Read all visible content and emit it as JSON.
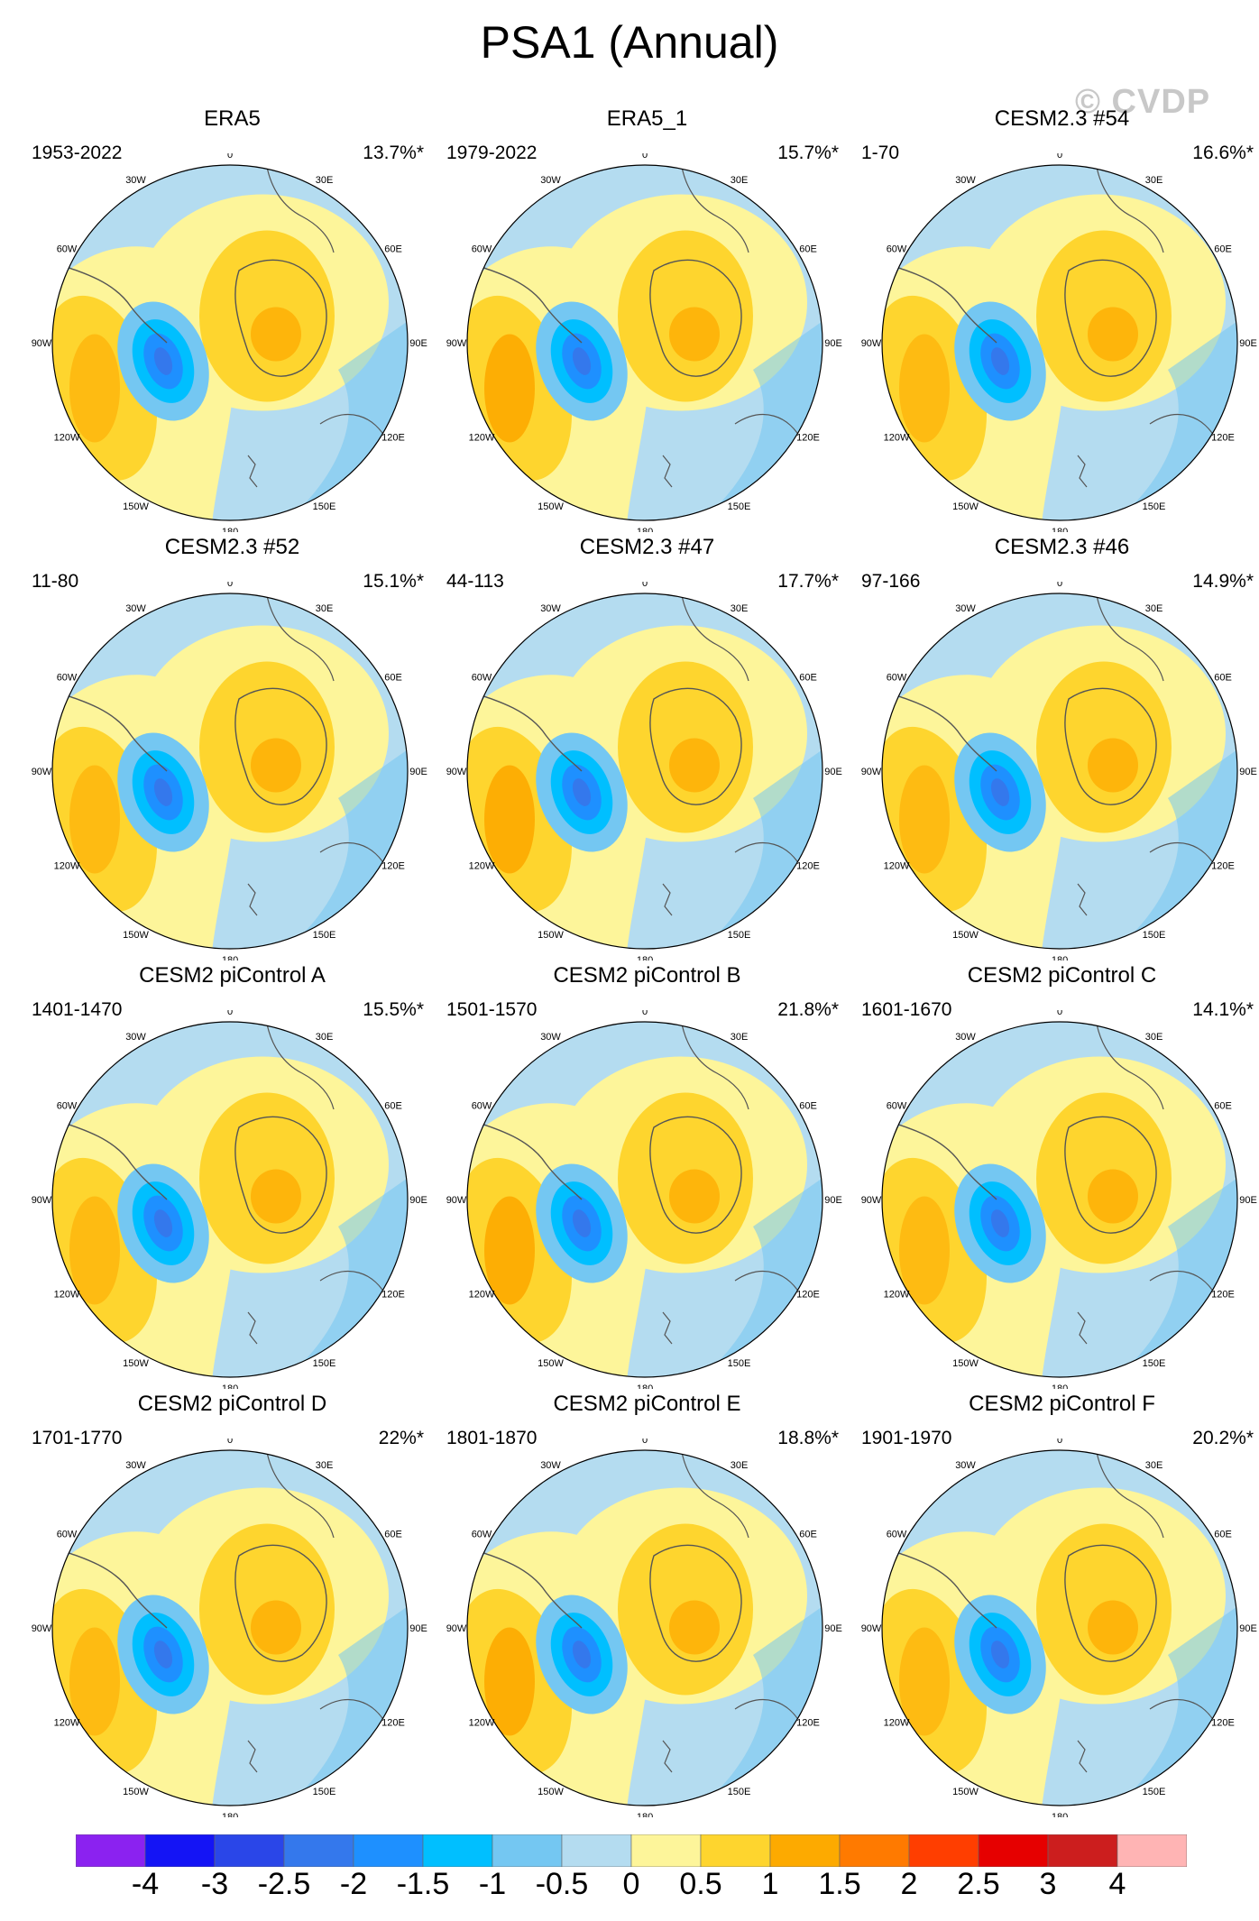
{
  "title": "PSA1 (Annual)",
  "watermark": "© CVDP",
  "panels": [
    {
      "name": "ERA5",
      "years": "1953-2022",
      "pct": "13.7%*"
    },
    {
      "name": "ERA5_1",
      "years": "1979-2022",
      "pct": "15.7%*"
    },
    {
      "name": "CESM2.3 #54",
      "years": "1-70",
      "pct": "16.6%*"
    },
    {
      "name": "CESM2.3 #52",
      "years": "11-80",
      "pct": "15.1%*"
    },
    {
      "name": "CESM2.3 #47",
      "years": "44-113",
      "pct": "17.7%*"
    },
    {
      "name": "CESM2.3 #46",
      "years": "97-166",
      "pct": "14.9%*"
    },
    {
      "name": "CESM2 piControl A",
      "years": "1401-1470",
      "pct": "15.5%*"
    },
    {
      "name": "CESM2 piControl B",
      "years": "1501-1570",
      "pct": "21.8%*"
    },
    {
      "name": "CESM2 piControl C",
      "years": "1601-1670",
      "pct": "14.1%*"
    },
    {
      "name": "CESM2 piControl D",
      "years": "1701-1770",
      "pct": "22%*"
    },
    {
      "name": "CESM2 piControl E",
      "years": "1801-1870",
      "pct": "18.8%*"
    },
    {
      "name": "CESM2 piControl F",
      "years": "1901-1970",
      "pct": "20.2%*"
    }
  ],
  "lon_labels": [
    "0",
    "30E",
    "60E",
    "90E",
    "120E",
    "150E",
    "180",
    "150W",
    "120W",
    "90W",
    "60W",
    "30W"
  ],
  "colorbar": {
    "colors": [
      "#8b22f0",
      "#1414f5",
      "#2a46e8",
      "#3478ec",
      "#1e90ff",
      "#00bfff",
      "#74c7f2",
      "#b4dcf0",
      "#fdf59a",
      "#fed52e",
      "#fdaa00",
      "#ff7a00",
      "#ff3e00",
      "#e60000",
      "#cc1e1e",
      "#ffb4b4"
    ],
    "labels": [
      "-4",
      "-3",
      "-2.5",
      "-2",
      "-1.5",
      "-1",
      "-0.5",
      "0",
      "0.5",
      "1",
      "1.5",
      "2",
      "2.5",
      "3",
      "4"
    ]
  }
}
